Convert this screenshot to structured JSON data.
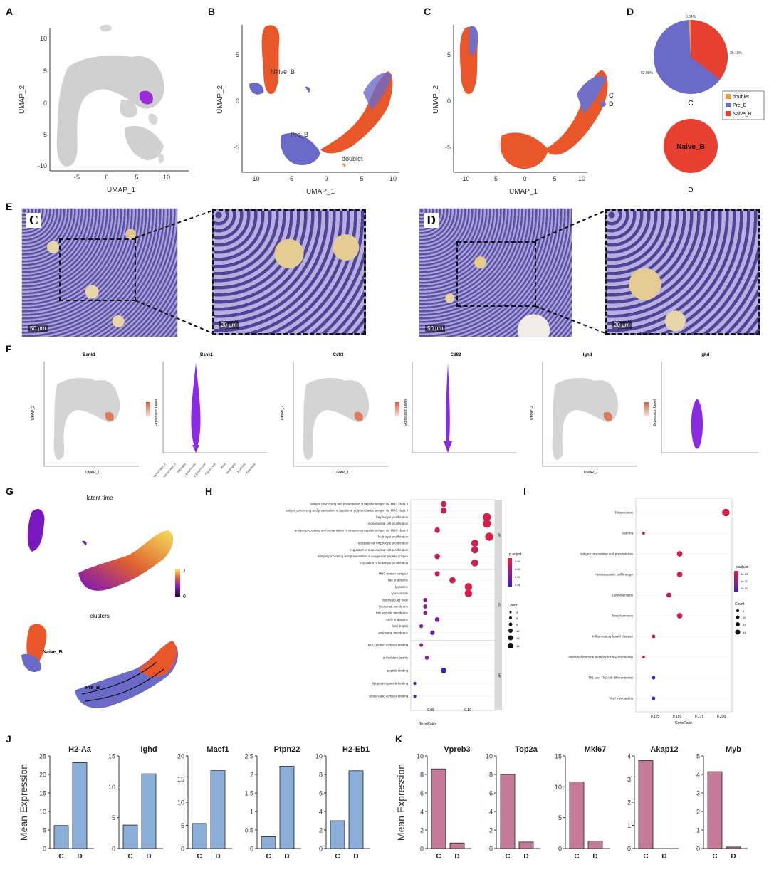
{
  "panel_labels": [
    "A",
    "B",
    "C",
    "D",
    "E",
    "F",
    "G",
    "H",
    "I",
    "J",
    "K"
  ],
  "panelA": {
    "xlabel": "UMAP_1",
    "ylabel": "UMAP_2",
    "xticks": [
      "-5",
      "0",
      "5",
      "10"
    ],
    "yticks": [
      "10",
      "5",
      "0",
      "-5",
      "-10"
    ]
  },
  "panelB": {
    "xlabel": "UMAP_1",
    "ylabel": "UMAP_2",
    "xticks": [
      "-10",
      "-5",
      "0",
      "5",
      "10"
    ],
    "yticks": [
      "5",
      "0",
      "-5"
    ],
    "labels": {
      "naive": "Naive_B",
      "pre": "Pre_B",
      "doublet": "doublet"
    }
  },
  "panelC": {
    "xlabel": "UMAP_1",
    "ylabel": "UMAP_2",
    "xticks": [
      "-10",
      "-5",
      "0",
      "5",
      "10"
    ],
    "yticks": [
      "5",
      "0",
      "-5"
    ],
    "legend": [
      {
        "name": "C",
        "color": "#e8562a"
      },
      {
        "name": "D",
        "color": "#7070c8"
      }
    ]
  },
  "panelD": {
    "pie_C_label": "C",
    "pie_D_label": "D",
    "pie_C_pcts": {
      "doublet": "0.84%",
      "naive": "36.18%",
      "pre": "62.98%"
    },
    "pie_D_text": "Naive_B",
    "legend": [
      {
        "name": "doublet",
        "color": "#e8a040"
      },
      {
        "name": "Pre_B",
        "color": "#6a6ac8"
      },
      {
        "name": "Naive_B",
        "color": "#e84030"
      }
    ]
  },
  "panelE": {
    "tag_left": "C",
    "tag_right": "D",
    "scale_left": "50 µm",
    "scale_left_zoom": "20 µm",
    "scale_right": "50 µm",
    "scale_right_zoom": "20 µm"
  },
  "panelF": {
    "titles": [
      "Bank1",
      "Bank1",
      "Cd83",
      "Cd83",
      "Ighd",
      "Ighd"
    ],
    "umap_ylabel": "UMAP_2",
    "umap_xlabel": "UMAP_1",
    "violin_ylabel": "Expression Level",
    "violin_categories": [
      "Macrophage_2",
      "Macrophage_3",
      "Microglia",
      "T lymphocyte",
      "B lymphocyte",
      "Plasma cell",
      "Mast",
      "Neutrophil",
      "Erythroid",
      "Fibroblast"
    ]
  },
  "panelG": {
    "title_top": "latent time",
    "title_bottom": "clusters",
    "colorbar_max": "1",
    "colorbar_min": "0",
    "lbl_naive": "Naive_B",
    "lbl_pre": "Pre_B"
  },
  "panelH": {
    "xlabel": "GeneRatio",
    "xticks": [
      "0.05",
      "0.10"
    ],
    "facets": [
      "BP",
      "CC",
      "MF"
    ],
    "legend_title": "p.adjust",
    "legend_vals": [
      "0.04",
      "0.03",
      "0.02",
      "0.01"
    ],
    "count_title": "Count",
    "count_vals": [
      "3",
      "6",
      "9",
      "12",
      "15",
      "18"
    ],
    "terms": [
      {
        "label": "antigen processing and presentation of peptide antigen via MHC class II",
        "ratio": 0.061,
        "p": 0.2,
        "n": 12,
        "g": 0
      },
      {
        "label": "antigen processing and presentation of peptide or polysaccharide antigen via MHC class II",
        "ratio": 0.061,
        "p": 0.2,
        "n": 12,
        "g": 0
      },
      {
        "label": "lymphocyte proliferation",
        "ratio": 0.115,
        "p": 0.1,
        "n": 18,
        "g": 0
      },
      {
        "label": "mononuclear cell proliferation",
        "ratio": 0.115,
        "p": 0.1,
        "n": 18,
        "g": 0
      },
      {
        "label": "antigen processing and presentation of exogenous peptide antigen via MHC class II",
        "ratio": 0.053,
        "p": 0.25,
        "n": 10,
        "g": 0
      },
      {
        "label": "leukocyte proliferation",
        "ratio": 0.118,
        "p": 0.1,
        "n": 18,
        "g": 0
      },
      {
        "label": "regulation of lymphocyte proliferation",
        "ratio": 0.1,
        "p": 0.15,
        "n": 15,
        "g": 0
      },
      {
        "label": "regulation of mononuclear cell proliferation",
        "ratio": 0.1,
        "p": 0.15,
        "n": 15,
        "g": 0
      },
      {
        "label": "antigen processing and presentation of exogenous peptide antigen",
        "ratio": 0.053,
        "p": 0.25,
        "n": 10,
        "g": 0
      },
      {
        "label": "regulation of leukocyte proliferation",
        "ratio": 0.1,
        "p": 0.15,
        "n": 15,
        "g": 0
      },
      {
        "label": "MHC protein complex",
        "ratio": 0.053,
        "p": 0.2,
        "n": 9,
        "g": 1
      },
      {
        "label": "late endosome",
        "ratio": 0.072,
        "p": 0.15,
        "n": 12,
        "g": 1
      },
      {
        "label": "lysosome",
        "ratio": 0.092,
        "p": 0.1,
        "n": 16,
        "g": 1
      },
      {
        "label": "lytic vacuole",
        "ratio": 0.092,
        "p": 0.1,
        "n": 16,
        "g": 1
      },
      {
        "label": "multivesicular body",
        "ratio": 0.038,
        "p": 0.55,
        "n": 6,
        "g": 1
      },
      {
        "label": "lysosomal membrane",
        "ratio": 0.038,
        "p": 0.55,
        "n": 6,
        "g": 1
      },
      {
        "label": "lytic vacuole membrane",
        "ratio": 0.038,
        "p": 0.55,
        "n": 6,
        "g": 1
      },
      {
        "label": "early endosome",
        "ratio": 0.053,
        "p": 0.65,
        "n": 8,
        "g": 1
      },
      {
        "label": "lipid droplet",
        "ratio": 0.033,
        "p": 0.7,
        "n": 5,
        "g": 1
      },
      {
        "label": "endosome membrane",
        "ratio": 0.047,
        "p": 0.75,
        "n": 7,
        "g": 1
      },
      {
        "label": "MHC protein complex binding",
        "ratio": 0.033,
        "p": 0.4,
        "n": 5,
        "g": 2
      },
      {
        "label": "antioxidant activity",
        "ratio": 0.04,
        "p": 0.6,
        "n": 6,
        "g": 2
      },
      {
        "label": "peptide binding",
        "ratio": 0.061,
        "p": 0.95,
        "n": 11,
        "g": 2
      },
      {
        "label": "lipoprotein particle binding",
        "ratio": 0.025,
        "p": 0.95,
        "n": 3,
        "g": 2
      },
      {
        "label": "protein-lipid complex binding",
        "ratio": 0.025,
        "p": 0.95,
        "n": 3,
        "g": 2
      }
    ]
  },
  "panelI": {
    "xlabel": "GeneRatio",
    "xticks": [
      "0.125",
      "0.150",
      "0.175",
      "0.200"
    ],
    "legend_title": "p.adjust",
    "legend_vals": [
      "5e-03",
      "1e-02",
      "2e-02"
    ],
    "count_title": "Count",
    "count_vals": [
      "8",
      "10",
      "12",
      "14"
    ],
    "terms": [
      {
        "label": "Tuberculosis",
        "ratio": 0.212,
        "p": 0.1,
        "n": 15
      },
      {
        "label": "Asthma",
        "ratio": 0.105,
        "p": 0.2,
        "n": 8
      },
      {
        "label": "Antigen processing and presentation",
        "ratio": 0.152,
        "p": 0.15,
        "n": 12
      },
      {
        "label": "Hematopoietic cell lineage",
        "ratio": 0.152,
        "p": 0.15,
        "n": 12
      },
      {
        "label": "Leishmaniasis",
        "ratio": 0.138,
        "p": 0.2,
        "n": 11
      },
      {
        "label": "Toxoplasmosis",
        "ratio": 0.152,
        "p": 0.15,
        "n": 12
      },
      {
        "label": "Inflammatory bowel disease",
        "ratio": 0.118,
        "p": 0.3,
        "n": 9
      },
      {
        "label": "Intestinal immune network for IgA production",
        "ratio": 0.105,
        "p": 0.3,
        "n": 8
      },
      {
        "label": "Th1 and Th2 cell differentiation",
        "ratio": 0.118,
        "p": 0.95,
        "n": 9
      },
      {
        "label": "Viral myocarditis",
        "ratio": 0.118,
        "p": 0.95,
        "n": 9
      }
    ]
  },
  "chart_data": [
    {
      "type": "bar",
      "panel": "J",
      "ylabel": "Mean Expression",
      "categories": [
        "C",
        "D"
      ],
      "color": "#8aaed8",
      "subplots": [
        {
          "title": "H2-Aa",
          "values": [
            6.2,
            23.2
          ],
          "ylim": [
            0,
            25
          ],
          "yticks": [
            0,
            5,
            10,
            15,
            20,
            25
          ]
        },
        {
          "title": "Ighd",
          "values": [
            3.8,
            12.1
          ],
          "ylim": [
            0,
            15
          ],
          "yticks": [
            0,
            5,
            10,
            15
          ]
        },
        {
          "title": "Macf1",
          "values": [
            5.4,
            16.9
          ],
          "ylim": [
            0,
            20
          ],
          "yticks": [
            0,
            5,
            10,
            15,
            20
          ]
        },
        {
          "title": "Ptpn22",
          "values": [
            0.32,
            2.22
          ],
          "ylim": [
            0,
            2.5
          ],
          "yticks": [
            0,
            0.5,
            1.0,
            1.5,
            2.0,
            2.5
          ]
        },
        {
          "title": "H2-Eb1",
          "values": [
            3.0,
            8.4
          ],
          "ylim": [
            0,
            10
          ],
          "yticks": [
            0,
            2,
            4,
            6,
            8,
            10
          ]
        }
      ]
    },
    {
      "type": "bar",
      "panel": "K",
      "ylabel": "Mean Expression",
      "categories": [
        "C",
        "D"
      ],
      "color": "#c47a98",
      "subplots": [
        {
          "title": "Vpreb3",
          "values": [
            8.6,
            0.6
          ],
          "ylim": [
            0,
            10
          ],
          "yticks": [
            0,
            2,
            4,
            6,
            8,
            10
          ]
        },
        {
          "title": "Top2a",
          "values": [
            8.0,
            0.7
          ],
          "ylim": [
            0,
            10
          ],
          "yticks": [
            0,
            2,
            4,
            6,
            8,
            10
          ]
        },
        {
          "title": "Mki67",
          "values": [
            10.8,
            1.2
          ],
          "ylim": [
            0,
            15
          ],
          "yticks": [
            0,
            5,
            10,
            15
          ]
        },
        {
          "title": "Akap12",
          "values": [
            3.8,
            0.0
          ],
          "ylim": [
            0,
            4
          ],
          "yticks": [
            0,
            1,
            2,
            3,
            4
          ]
        },
        {
          "title": "Myb",
          "values": [
            4.15,
            0.08
          ],
          "ylim": [
            0,
            5
          ],
          "yticks": [
            0,
            1,
            2,
            3,
            4,
            5
          ]
        }
      ]
    }
  ]
}
